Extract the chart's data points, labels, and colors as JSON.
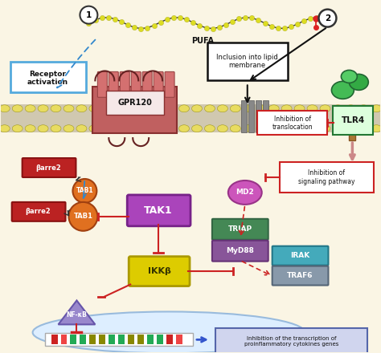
{
  "background_color": "#faf5e4",
  "labels": {
    "pufa": "PUFA",
    "label1": "1",
    "label2": "2",
    "receptor_activation": "Receptor\nactivation",
    "inclusion_lipid": "Inclusion into lipid\nmembrane",
    "gpr120": "GPR120",
    "barre2_top": "βarre2",
    "tab1_top": "TAB1",
    "barre2_bot": "βarre2",
    "tab1_bot": "TAB1",
    "tak1": "TAK1",
    "ikkb": "IKKβ",
    "nfkb": "NF-κB",
    "tlr4": "TLR4",
    "md2": "MD2",
    "triap": "TRIAP",
    "myd88": "MyD88",
    "irak": "IRAK",
    "traf6": "TRAF6",
    "inhibition_translocation": "Inhibition of\ntranslocation",
    "inhibition_signaling": "Inhibition of\nsignaling pathway",
    "inhibition_transcription": "Inhibition of the transcription of\nproinflammatory cytokines genes"
  },
  "colors": {
    "bg": "#faf5e4",
    "cell_interior": "#faf5e4",
    "nucleus_bg": "#ddeeff",
    "nucleus_edge": "#99bbdd",
    "membrane_band": "#d4c870",
    "membrane_head": "#e8dc60",
    "membrane_head_ec": "#a09820",
    "receptor_activation_box_ec": "#55aadd",
    "inclusion_box_ec": "#111111",
    "gpr120_body": "#c06060",
    "gpr120_ec": "#883030",
    "gpr120_helix": "#cc7070",
    "gpr120_label_bg": "#f0e0e0",
    "barre2_fill": "#bb2222",
    "barre2_ec": "#881111",
    "tab1_fill": "#e07020",
    "tab1_ec": "#a04010",
    "tak1_fill": "#aa44bb",
    "tak1_ec": "#772288",
    "ikkb_fill": "#ddcc00",
    "ikkb_ec": "#aa9900",
    "nfkb_fill": "#9988cc",
    "nfkb_ec": "#6655aa",
    "tlr4_fill": "#33aa55",
    "tlr4_ec": "#227733",
    "tlr4_stem": "#996633",
    "md2_fill": "#cc55bb",
    "md2_ec": "#993388",
    "triap_fill": "#448855",
    "triap_ec": "#336644",
    "myd88_fill": "#885599",
    "myd88_ec": "#663377",
    "irak_fill": "#44aabb",
    "irak_ec": "#227788",
    "traf6_fill": "#8899aa",
    "traf6_ec": "#556677",
    "inh_trans_ec": "#cc2222",
    "inh_sig_ec": "#cc2222",
    "inh_trans_bg": "#ffffff",
    "inh_sig_bg": "#ffffff",
    "inh_transcription_bg": "#d0d5ee",
    "inh_transcription_ec": "#5566aa",
    "arrow_red": "#cc2222",
    "arrow_blue_dashed": "#3388cc",
    "arrow_black": "#111111",
    "arrow_pink": "#cc8888"
  }
}
